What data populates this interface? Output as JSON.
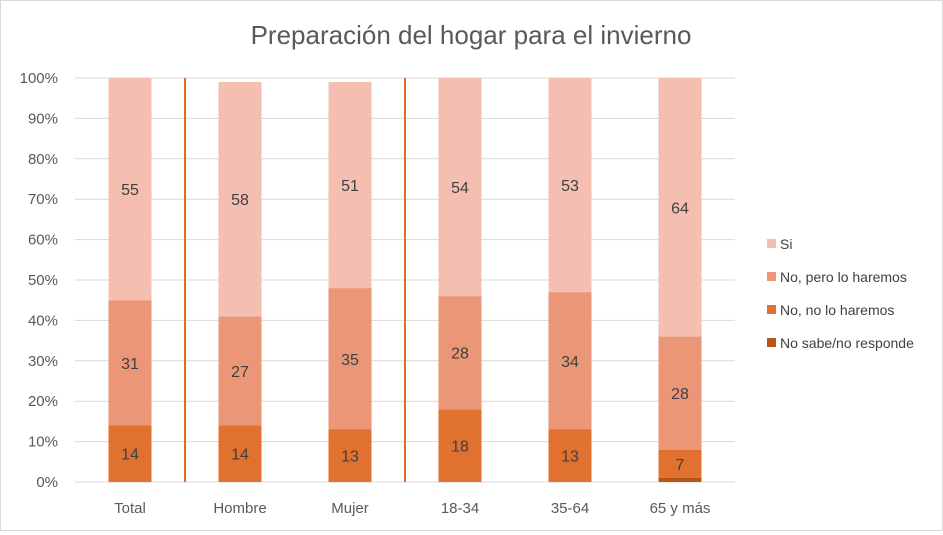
{
  "chart_data": {
    "type": "bar",
    "stacked": true,
    "percent_scale": true,
    "title": "Preparación del hogar para el invierno",
    "xlabel": "",
    "ylabel": "",
    "categories": [
      "Total",
      "Hombre",
      "Mujer",
      "18-34",
      "35-64",
      "65 y más"
    ],
    "ylim": [
      0,
      100
    ],
    "yticks": [
      "0%",
      "10%",
      "20%",
      "30%",
      "40%",
      "50%",
      "60%",
      "70%",
      "80%",
      "90%",
      "100%"
    ],
    "grid": true,
    "legend_position": "right",
    "series": [
      {
        "name": "No sabe/no responde",
        "color": "#b55516",
        "values": [
          0,
          0,
          0,
          0,
          0,
          1
        ],
        "labels": [
          "",
          "",
          "",
          "",
          "",
          ""
        ]
      },
      {
        "name": "No, no lo haremos",
        "color": "#e0712e",
        "values": [
          14,
          14,
          13,
          18,
          13,
          7
        ],
        "labels": [
          "14",
          "14",
          "13",
          "18",
          "13",
          "7"
        ]
      },
      {
        "name": "No, pero lo haremos",
        "color": "#eb9676",
        "values": [
          31,
          27,
          35,
          28,
          34,
          28
        ],
        "labels": [
          "31",
          "27",
          "35",
          "28",
          "34",
          "28"
        ]
      },
      {
        "name": "Si",
        "color": "#f4bfb0",
        "values": [
          55,
          58,
          51,
          54,
          53,
          64
        ],
        "labels": [
          "55",
          "58",
          "51",
          "54",
          "53",
          "64"
        ]
      }
    ],
    "separators_after_category_index": [
      0,
      2
    ],
    "separator_color": "#e06c28",
    "grid_color": "#d9d9d9"
  }
}
